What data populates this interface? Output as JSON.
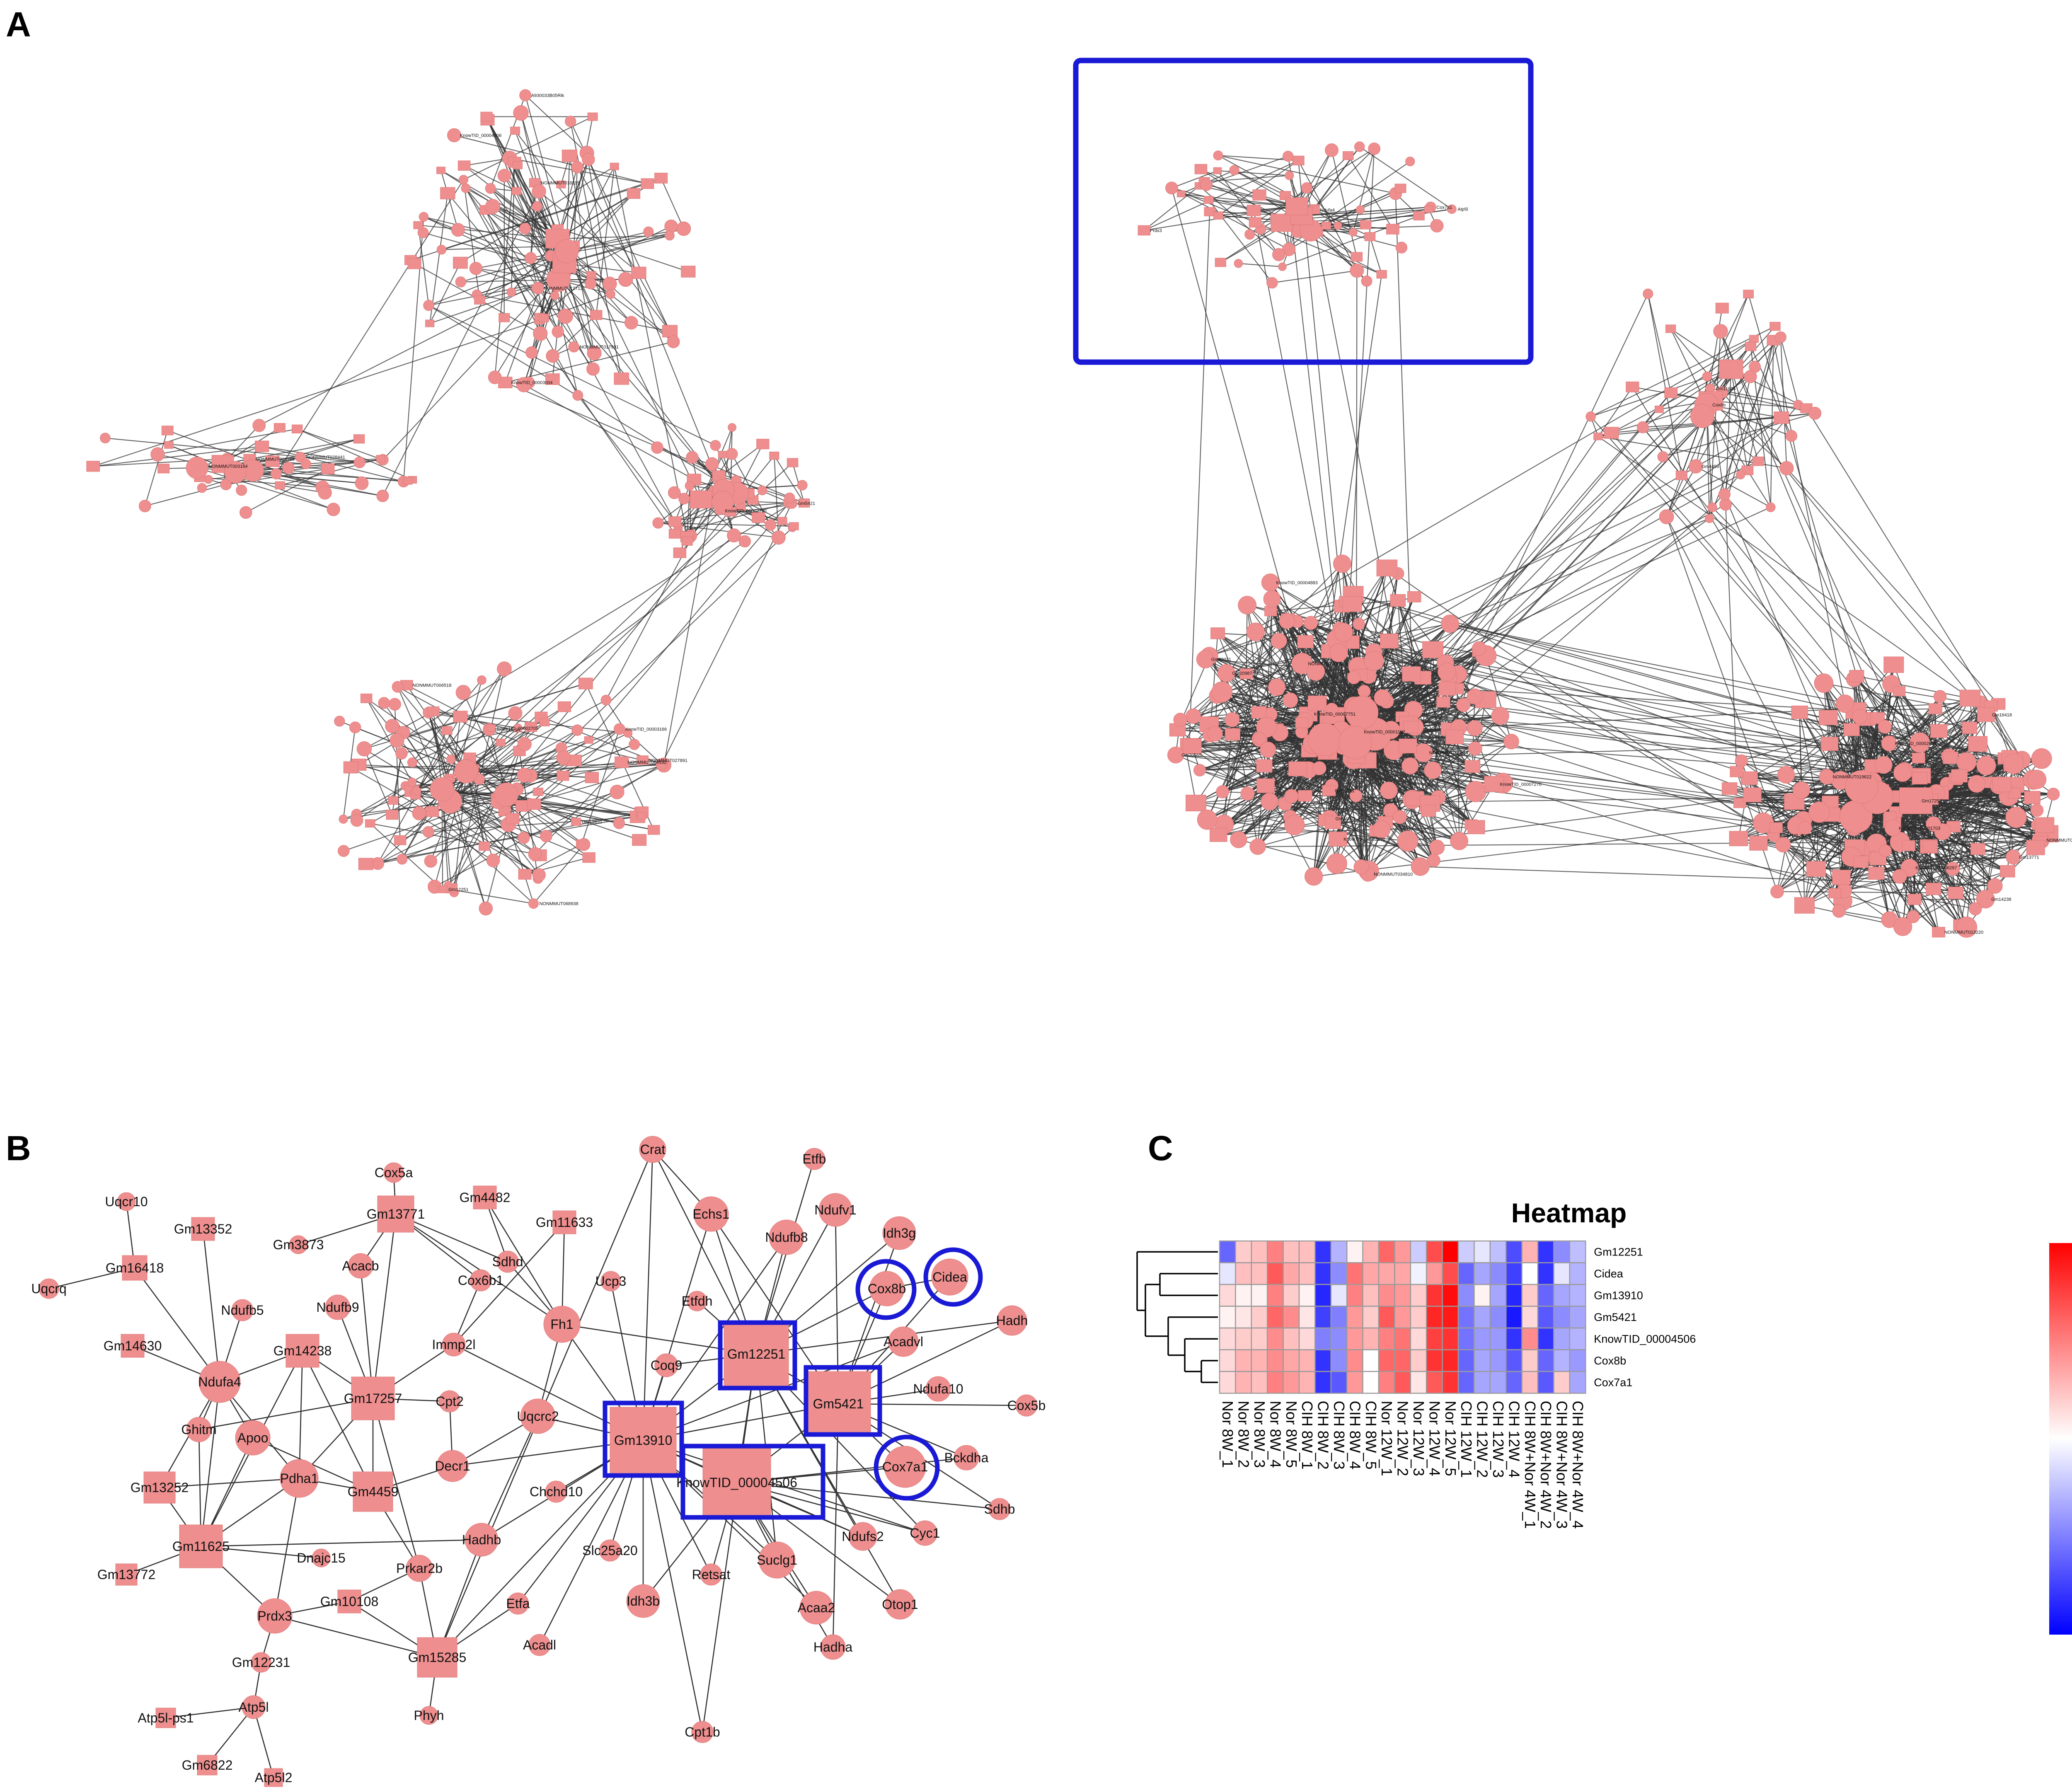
{
  "panels": {
    "a": "A",
    "b": "B",
    "c": "C"
  },
  "colors": {
    "node": "#ee8e8e",
    "edge": "#333333",
    "highlight": "#1a1ad6",
    "low": "#0000ff",
    "mid": "#ffffff",
    "high": "#ff0000"
  },
  "network_a": {
    "labels": [
      "NONMMUT018215",
      "KnowTID_00003004",
      "NONMMUT017991",
      "A930033B05Rik",
      "NONMMUT012712",
      "KnowTID_00004506",
      "NONMMUT006518",
      "Sec61a1_ps",
      "NONMMUT066532",
      "NONMMUT068938",
      "Gm13910",
      "NONMMUT027891",
      "KnowTID_00002705",
      "KnowTID_00003166",
      "Gm12251",
      "Cidea",
      "Gm5421",
      "KnowTID_00002700",
      "NONMMUT010755",
      "NONMMUT003164",
      "NONMMUT028441",
      "KnowTID_00007751",
      "NONMMUT005814",
      "KnowTID_00002291",
      "NONMMUT001564",
      "KnowTID_00001192",
      "Gm40021",
      "Gm24003",
      "KnowTID_00004883",
      "KnowTID_00007270",
      "NONMMUT034810",
      "Gm21711",
      "Gm20987",
      "Gm20565",
      "NONMMUT013220",
      "KnowTID_00008297",
      "NONMMUT037108",
      "KnowTID_00002624",
      "KnowTID_00001471",
      "KnowTID_00001703",
      "NONMMUT019622",
      "Gm13771",
      "Gm16418",
      "Gm14238",
      "Gm17257",
      "Gm4459",
      "Gm11625",
      "Cox8b",
      "Cox7a1",
      "Ndufa4",
      "Prdx3",
      "Atp5l"
    ]
  },
  "network_b": {
    "nodes": [
      {
        "id": "Uqcr10",
        "label": "Uqcr10",
        "shape": "circle"
      },
      {
        "id": "Gm16418",
        "label": "Gm16418",
        "shape": "square"
      },
      {
        "id": "Uqcrq",
        "label": "Uqcrq",
        "shape": "circle"
      },
      {
        "id": "Gm13352",
        "label": "Gm13352",
        "shape": "square"
      },
      {
        "id": "Gm14630",
        "label": "Gm14630",
        "shape": "square"
      },
      {
        "id": "Ndufb5",
        "label": "Ndufb5",
        "shape": "circle"
      },
      {
        "id": "Ndufa4",
        "label": "Ndufa4",
        "shape": "circle"
      },
      {
        "id": "Ghitm",
        "label": "Ghitm",
        "shape": "circle"
      },
      {
        "id": "Apoo",
        "label": "Apoo",
        "shape": "circle"
      },
      {
        "id": "Gm13252",
        "label": "Gm13252",
        "shape": "square"
      },
      {
        "id": "Pdha1",
        "label": "Pdha1",
        "shape": "circle"
      },
      {
        "id": "Gm11625",
        "label": "Gm11625",
        "shape": "square"
      },
      {
        "id": "Gm13772",
        "label": "Gm13772",
        "shape": "square"
      },
      {
        "id": "Prdx3",
        "label": "Prdx3",
        "shape": "circle"
      },
      {
        "id": "Gm12231",
        "label": "Gm12231",
        "shape": "circle"
      },
      {
        "id": "Atp5l",
        "label": "Atp5l",
        "shape": "circle"
      },
      {
        "id": "Atp5l-ps1",
        "label": "Atp5l-ps1",
        "shape": "square"
      },
      {
        "id": "Gm6822",
        "label": "Gm6822",
        "shape": "square"
      },
      {
        "id": "Atp5l2",
        "label": "Atp5l2",
        "shape": "square"
      },
      {
        "id": "Cox5a",
        "label": "Cox5a",
        "shape": "circle"
      },
      {
        "id": "Gm13771",
        "label": "Gm13771",
        "shape": "square"
      },
      {
        "id": "Gm3873",
        "label": "Gm3873",
        "shape": "circle"
      },
      {
        "id": "Acacb",
        "label": "Acacb",
        "shape": "circle"
      },
      {
        "id": "Ndufb9",
        "label": "Ndufb9",
        "shape": "circle"
      },
      {
        "id": "Gm14238",
        "label": "Gm14238",
        "shape": "square"
      },
      {
        "id": "Gm17257",
        "label": "Gm17257",
        "shape": "square"
      },
      {
        "id": "Gm4459",
        "label": "Gm4459",
        "shape": "square"
      },
      {
        "id": "Dnajc15",
        "label": "Dnajc15",
        "shape": "circle"
      },
      {
        "id": "Gm10108",
        "label": "Gm10108",
        "shape": "square"
      },
      {
        "id": "Prkar2b",
        "label": "Prkar2b",
        "shape": "circle"
      },
      {
        "id": "Gm15285",
        "label": "Gm15285",
        "shape": "square"
      },
      {
        "id": "Phyh",
        "label": "Phyh",
        "shape": "circle"
      },
      {
        "id": "Gm4482",
        "label": "Gm4482",
        "shape": "square"
      },
      {
        "id": "Sdhd",
        "label": "Sdhd",
        "shape": "circle"
      },
      {
        "id": "Cox6b1",
        "label": "Cox6b1",
        "shape": "circle"
      },
      {
        "id": "Gm11633",
        "label": "Gm11633",
        "shape": "square"
      },
      {
        "id": "Immp2l",
        "label": "Immp2l",
        "shape": "circle"
      },
      {
        "id": "Cpt2",
        "label": "Cpt2",
        "shape": "circle"
      },
      {
        "id": "Decr1",
        "label": "Decr1",
        "shape": "circle"
      },
      {
        "id": "Uqcrc2",
        "label": "Uqcrc2",
        "shape": "circle"
      },
      {
        "id": "Hadhb",
        "label": "Hadhb",
        "shape": "circle"
      },
      {
        "id": "Etfa",
        "label": "Etfa",
        "shape": "circle"
      },
      {
        "id": "Acadl",
        "label": "Acadl",
        "shape": "circle"
      },
      {
        "id": "Chchd10",
        "label": "Chchd10",
        "shape": "circle"
      },
      {
        "id": "Fh1",
        "label": "Fh1",
        "shape": "circle"
      },
      {
        "id": "Crat",
        "label": "Crat",
        "shape": "circle"
      },
      {
        "id": "Ucp3",
        "label": "Ucp3",
        "shape": "circle"
      },
      {
        "id": "Coq9",
        "label": "Coq9",
        "shape": "circle"
      },
      {
        "id": "Etfdh",
        "label": "Etfdh",
        "shape": "circle"
      },
      {
        "id": "Echs1",
        "label": "Echs1",
        "shape": "circle"
      },
      {
        "id": "Etfb",
        "label": "Etfb",
        "shape": "circle"
      },
      {
        "id": "Ndufb8",
        "label": "Ndufb8",
        "shape": "circle"
      },
      {
        "id": "Ndufv1",
        "label": "Ndufv1",
        "shape": "circle"
      },
      {
        "id": "Idh3g",
        "label": "Idh3g",
        "shape": "circle"
      },
      {
        "id": "Cidea",
        "label": "Cidea",
        "shape": "circle"
      },
      {
        "id": "Cox8b",
        "label": "Cox8b",
        "shape": "circle"
      },
      {
        "id": "Hadh",
        "label": "Hadh",
        "shape": "circle"
      },
      {
        "id": "Acadvl",
        "label": "Acadvl",
        "shape": "circle"
      },
      {
        "id": "Gm12251",
        "label": "Gm12251",
        "shape": "square"
      },
      {
        "id": "Gm5421",
        "label": "Gm5421",
        "shape": "square"
      },
      {
        "id": "Ndufa10",
        "label": "Ndufa10",
        "shape": "circle"
      },
      {
        "id": "Cox5b",
        "label": "Cox5b",
        "shape": "circle"
      },
      {
        "id": "Gm13910",
        "label": "Gm13910",
        "shape": "square"
      },
      {
        "id": "KnowTID_00004506",
        "label": "KnowTID_00004506",
        "shape": "square"
      },
      {
        "id": "Cox7a1",
        "label": "Cox7a1",
        "shape": "circle"
      },
      {
        "id": "Bckdha",
        "label": "Bckdha",
        "shape": "circle"
      },
      {
        "id": "Sdhb",
        "label": "Sdhb",
        "shape": "circle"
      },
      {
        "id": "Cyc1",
        "label": "Cyc1",
        "shape": "circle"
      },
      {
        "id": "Ndufs2",
        "label": "Ndufs2",
        "shape": "circle"
      },
      {
        "id": "Slc25a20",
        "label": "Slc25a20",
        "shape": "circle"
      },
      {
        "id": "Idh3b",
        "label": "Idh3b",
        "shape": "circle"
      },
      {
        "id": "Retsat",
        "label": "Retsat",
        "shape": "circle"
      },
      {
        "id": "Suclg1",
        "label": "Suclg1",
        "shape": "circle"
      },
      {
        "id": "Acaa2",
        "label": "Acaa2",
        "shape": "circle"
      },
      {
        "id": "Hadha",
        "label": "Hadha",
        "shape": "circle"
      },
      {
        "id": "Otop1",
        "label": "Otop1",
        "shape": "circle"
      },
      {
        "id": "Cpt1b",
        "label": "Cpt1b",
        "shape": "circle"
      }
    ],
    "edges": [
      [
        "Uqcr10",
        "Gm16418"
      ],
      [
        "Uqcrq",
        "Gm16418"
      ],
      [
        "Gm16418",
        "Ndufa4"
      ],
      [
        "Gm13352",
        "Ndufa4"
      ],
      [
        "Gm14630",
        "Ndufa4"
      ],
      [
        "Ndufb5",
        "Ndufa4"
      ],
      [
        "Ndufa4",
        "Gm14238"
      ],
      [
        "Ndufa4",
        "Pdha1"
      ],
      [
        "Ndufa4",
        "Ghitm"
      ],
      [
        "Ndufa4",
        "Apoo"
      ],
      [
        "Ndufa4",
        "Gm13252"
      ],
      [
        "Ndufa4",
        "Gm11625"
      ],
      [
        "Ghitm",
        "Gm11625"
      ],
      [
        "Apoo",
        "Gm11625"
      ],
      [
        "Gm13252",
        "Gm11625"
      ],
      [
        "Gm13252",
        "Pdha1"
      ],
      [
        "Pdha1",
        "Gm11625"
      ],
      [
        "Pdha1",
        "Gm4459"
      ],
      [
        "Pdha1",
        "Prdx3"
      ],
      [
        "Pdha1",
        "Gm14238"
      ],
      [
        "Gm11625",
        "Gm13772"
      ],
      [
        "Gm11625",
        "Prdx3"
      ],
      [
        "Gm11625",
        "Gm14238"
      ],
      [
        "Gm11625",
        "Hadhb"
      ],
      [
        "Gm11625",
        "Dnajc15"
      ],
      [
        "Prdx3",
        "Gm12231"
      ],
      [
        "Prdx3",
        "Gm10108"
      ],
      [
        "Prdx3",
        "Gm15285"
      ],
      [
        "Gm12231",
        "Atp5l"
      ],
      [
        "Atp5l",
        "Atp5l-ps1"
      ],
      [
        "Atp5l",
        "Gm6822"
      ],
      [
        "Atp5l",
        "Atp5l2"
      ],
      [
        "Cox5a",
        "Gm13771"
      ],
      [
        "Gm13771",
        "Gm3873"
      ],
      [
        "Gm13771",
        "Acacb"
      ],
      [
        "Gm13771",
        "Gm17257"
      ],
      [
        "Gm13771",
        "Sdhd"
      ],
      [
        "Gm13771",
        "Cox6b1"
      ],
      [
        "Gm13771",
        "Fh1"
      ],
      [
        "Gm14238",
        "Gm17257"
      ],
      [
        "Ndufb9",
        "Gm17257"
      ],
      [
        "Acacb",
        "Gm17257"
      ],
      [
        "Gm17257",
        "Gm4459"
      ],
      [
        "Gm17257",
        "Cpt2"
      ],
      [
        "Gm17257",
        "Immp2l"
      ],
      [
        "Gm17257",
        "Prkar2b"
      ],
      [
        "Gm17257",
        "Pdha1"
      ],
      [
        "Gm17257",
        "Ghitm"
      ],
      [
        "Gm4459",
        "Gm14238"
      ],
      [
        "Gm4459",
        "Decr1"
      ],
      [
        "Gm4459",
        "Prkar2b"
      ],
      [
        "Gm4459",
        "Apoo"
      ],
      [
        "Gm10108",
        "Prkar2b"
      ],
      [
        "Gm10108",
        "Gm15285"
      ],
      [
        "Prkar2b",
        "Gm15285"
      ],
      [
        "Gm15285",
        "Phyh"
      ],
      [
        "Gm15285",
        "Etfa"
      ],
      [
        "Gm15285",
        "Hadhb"
      ],
      [
        "Gm15285",
        "Gm13910"
      ],
      [
        "Gm4482",
        "Sdhd"
      ],
      [
        "Gm4482",
        "Fh1"
      ],
      [
        "Gm11633",
        "Fh1"
      ],
      [
        "Gm11633",
        "Immp2l"
      ],
      [
        "Sdhd",
        "Fh1"
      ],
      [
        "Cox6b1",
        "Immp2l"
      ],
      [
        "Immp2l",
        "Gm13910"
      ],
      [
        "Cpt2",
        "Decr1"
      ],
      [
        "Decr1",
        "Uqcrc2"
      ],
      [
        "Decr1",
        "Gm13910"
      ],
      [
        "Uqcrc2",
        "Gm13910"
      ],
      [
        "Uqcrc2",
        "Fh1"
      ],
      [
        "Hadhb",
        "Gm13910"
      ],
      [
        "Hadhb",
        "Uqcrc2"
      ],
      [
        "Chchd10",
        "Gm13910"
      ],
      [
        "Etfa",
        "Gm13910"
      ],
      [
        "Acadl",
        "Gm13910"
      ],
      [
        "Slc25a20",
        "Gm13910"
      ],
      [
        "Idh3b",
        "Gm13910"
      ],
      [
        "Fh1",
        "Gm13910"
      ],
      [
        "Fh1",
        "Gm12251"
      ],
      [
        "Crat",
        "Gm13910"
      ],
      [
        "Crat",
        "Echs1"
      ],
      [
        "Crat",
        "Gm12251"
      ],
      [
        "Crat",
        "Gm15285"
      ],
      [
        "Ucp3",
        "Gm13910"
      ],
      [
        "Coq9",
        "Gm13910"
      ],
      [
        "Coq9",
        "Gm12251"
      ],
      [
        "Etfdh",
        "Gm12251"
      ],
      [
        "Echs1",
        "Gm12251"
      ],
      [
        "Echs1",
        "Gm13910"
      ],
      [
        "Echs1",
        "Gm5421"
      ],
      [
        "Etfb",
        "Gm12251"
      ],
      [
        "Ndufb8",
        "Gm12251"
      ],
      [
        "Ndufb8",
        "Gm13910"
      ],
      [
        "Ndufv1",
        "Gm12251"
      ],
      [
        "Ndufv1",
        "Gm5421"
      ],
      [
        "Idh3g",
        "Gm12251"
      ],
      [
        "Idh3g",
        "Gm5421"
      ],
      [
        "Cox8b",
        "Gm12251"
      ],
      [
        "Cox8b",
        "Gm5421"
      ],
      [
        "Cidea",
        "Gm5421"
      ],
      [
        "Cidea",
        "Cox8b"
      ],
      [
        "Hadh",
        "Gm12251"
      ],
      [
        "Hadh",
        "Gm5421"
      ],
      [
        "Acadvl",
        "Gm5421"
      ],
      [
        "Acadvl",
        "Gm13910"
      ],
      [
        "Gm12251",
        "Gm13910"
      ],
      [
        "Gm12251",
        "Gm5421"
      ],
      [
        "Gm12251",
        "KnowTID_00004506"
      ],
      [
        "Gm5421",
        "Gm13910"
      ],
      [
        "Gm5421",
        "KnowTID_00004506"
      ],
      [
        "Gm5421",
        "Ndufa10"
      ],
      [
        "Gm5421",
        "Cox5b"
      ],
      [
        "Gm5421",
        "Cox7a1"
      ],
      [
        "Gm13910",
        "KnowTID_00004506"
      ],
      [
        "KnowTID_00004506",
        "Cox7a1"
      ],
      [
        "KnowTID_00004506",
        "Bckdha"
      ],
      [
        "KnowTID_00004506",
        "Sdhb"
      ],
      [
        "KnowTID_00004506",
        "Cyc1"
      ],
      [
        "KnowTID_00004506",
        "Ndufs2"
      ],
      [
        "KnowTID_00004506",
        "Suclg1"
      ],
      [
        "KnowTID_00004506",
        "Acaa2"
      ],
      [
        "KnowTID_00004506",
        "Hadha"
      ],
      [
        "KnowTID_00004506",
        "Otop1"
      ],
      [
        "KnowTID_00004506",
        "Retsat"
      ],
      [
        "KnowTID_00004506",
        "Idh3b"
      ],
      [
        "Gm13910",
        "Suclg1"
      ],
      [
        "Gm13910",
        "Cyc1"
      ],
      [
        "Gm13910",
        "Ndufs2"
      ],
      [
        "Gm13910",
        "Cpt1b"
      ],
      [
        "Gm13910",
        "Retsat"
      ],
      [
        "Gm12251",
        "Ndufs2"
      ],
      [
        "Gm12251",
        "Cyc1"
      ],
      [
        "Gm5421",
        "Sdhb"
      ],
      [
        "Gm5421",
        "Bckdha"
      ],
      [
        "Suclg1",
        "Gm12251"
      ],
      [
        "Cpt1b",
        "Gm12251"
      ],
      [
        "Otop1",
        "Gm12251"
      ],
      [
        "Hadha",
        "Gm5421"
      ],
      [
        "Acaa2",
        "Gm13910"
      ]
    ]
  },
  "heatmap": {
    "title": "Heatmap",
    "rows": [
      "Gm12251",
      "Cidea",
      "Gm13910",
      "Gm5421",
      "KnowTID_00004506",
      "Cox8b",
      "Cox7a1"
    ],
    "cols": [
      "Nor 8W_1",
      "Nor 8W_2",
      "Nor 8W_3",
      "Nor 8W_4",
      "Nor 8W_5",
      "CIH 8W_1",
      "CIH 8W_2",
      "CIH 8W_3",
      "CIH 8W_4",
      "CIH 8W_5",
      "Nor 12W_1",
      "Nor 12W_2",
      "Nor 12W_3",
      "Nor 12W_4",
      "Nor 12W_5",
      "CIH 12W_1",
      "CIH 12W_2",
      "CIH 12W_3",
      "CIH 12W_4",
      "CIH 8W+Nor 4W_1",
      "CIH 8W+Nor 4W_2",
      "CIH 8W+Nor 4W_3",
      "CIH 8W+Nor 4W_4"
    ],
    "values": [
      [
        -1.2,
        0.4,
        0.5,
        1.0,
        0.5,
        0.5,
        -1.6,
        -0.6,
        0.1,
        0.6,
        1.2,
        0.8,
        -0.4,
        1.4,
        2.0,
        -0.4,
        -0.2,
        -0.5,
        -1.4,
        0.6,
        -1.6,
        -0.9,
        -0.5
      ],
      [
        -0.2,
        0.5,
        0.5,
        1.3,
        0.7,
        0.5,
        -1.6,
        -0.9,
        1.1,
        0.7,
        0.7,
        0.7,
        -0.1,
        0.8,
        1.4,
        -1.2,
        -0.7,
        -0.9,
        -1.5,
        0.0,
        -1.6,
        -0.2,
        -0.6
      ],
      [
        0.3,
        0.1,
        0.1,
        1.0,
        0.4,
        0.1,
        -1.7,
        -0.2,
        1.0,
        0.5,
        0.9,
        0.8,
        0.4,
        1.6,
        1.9,
        -0.9,
        0.1,
        -0.7,
        -1.7,
        0.4,
        -1.2,
        -0.7,
        -0.6
      ],
      [
        0.1,
        0.2,
        0.4,
        1.2,
        0.9,
        0.2,
        -1.5,
        -1.0,
        0.8,
        0.4,
        1.3,
        0.8,
        0.4,
        1.7,
        1.8,
        -1.1,
        -0.7,
        -0.9,
        -1.8,
        0.3,
        -1.3,
        -0.9,
        -0.7
      ],
      [
        0.3,
        0.4,
        0.4,
        0.9,
        0.5,
        0.3,
        -1.0,
        -0.9,
        0.8,
        0.6,
        1.0,
        1.1,
        0.3,
        1.5,
        1.6,
        -1.1,
        -0.8,
        -0.8,
        -1.6,
        0.9,
        -1.6,
        -0.7,
        -0.6
      ],
      [
        0.3,
        0.6,
        0.6,
        0.9,
        0.7,
        0.6,
        -1.6,
        -0.9,
        0.9,
        0.0,
        1.2,
        1.2,
        0.4,
        1.6,
        1.7,
        -1.2,
        -0.7,
        -0.8,
        -1.3,
        0.4,
        -1.2,
        -0.6,
        -0.8
      ],
      [
        0.3,
        0.6,
        0.5,
        1.0,
        0.8,
        0.6,
        -1.6,
        -1.3,
        0.8,
        0.0,
        1.0,
        1.3,
        0.2,
        1.3,
        1.6,
        -1.2,
        -0.7,
        -0.7,
        -1.2,
        0.5,
        -1.3,
        0.4,
        -0.7
      ]
    ],
    "legend_ticks": [
      "2",
      "1",
      "0",
      "-1",
      "-2"
    ],
    "legend_values": [
      2,
      1,
      0,
      -1,
      -2
    ],
    "range": [
      -2,
      2
    ]
  }
}
